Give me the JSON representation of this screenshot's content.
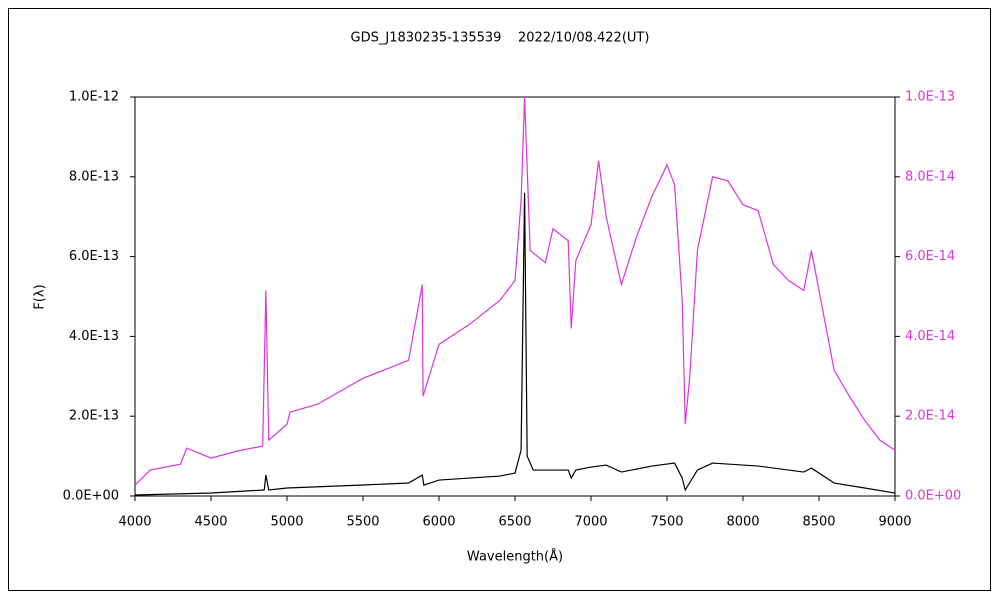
{
  "chart_data": {
    "type": "line",
    "title": "GDS_J1830235-135539    2022/10/08.422(UT)",
    "xlabel": "Wavelength(Å)",
    "ylabel": "F(λ)",
    "xlim": [
      4000,
      9000
    ],
    "xticks": [
      4000,
      4500,
      5000,
      5500,
      6000,
      6500,
      7000,
      7500,
      8000,
      8500,
      9000
    ],
    "ylim": [
      0,
      1e-12
    ],
    "yticks": [
      {
        "value": 0,
        "label": "0.0E+00"
      },
      {
        "value": 2e-13,
        "label": "2.0E-13"
      },
      {
        "value": 4e-13,
        "label": "4.0E-13"
      },
      {
        "value": 6e-13,
        "label": "6.0E-13"
      },
      {
        "value": 8e-13,
        "label": "8.0E-13"
      },
      {
        "value": 1e-12,
        "label": "1.0E-12"
      }
    ],
    "y2lim": [
      0,
      1e-13
    ],
    "y2ticks": [
      {
        "value": 0,
        "label": "0.0E+00"
      },
      {
        "value": 2e-14,
        "label": "2.0E-14"
      },
      {
        "value": 4e-14,
        "label": "4.0E-14"
      },
      {
        "value": 6e-14,
        "label": "6.0E-14"
      },
      {
        "value": 8e-14,
        "label": "8.0E-14"
      },
      {
        "value": 1e-13,
        "label": "1.0E-13"
      }
    ],
    "y2color": "#dd33dd",
    "series": [
      {
        "color": "#dd33dd",
        "axis": "y2",
        "x": [
          4000,
          4100,
          4300,
          4340,
          4500,
          4700,
          4840,
          4861,
          4880,
          5000,
          5020,
          5200,
          5500,
          5800,
          5890,
          5895,
          6000,
          6200,
          6400,
          6500,
          6540,
          6563,
          6600,
          6700,
          6750,
          6850,
          6870,
          6900,
          7000,
          7050,
          7100,
          7200,
          7300,
          7400,
          7500,
          7550,
          7600,
          7620,
          7650,
          7700,
          7800,
          7900,
          8000,
          8100,
          8200,
          8300,
          8400,
          8450,
          8500,
          8600,
          8700,
          8800,
          8900,
          9000
        ],
        "values": [
          2.7e-15,
          6.5e-15,
          8e-15,
          1.2e-14,
          9.5e-15,
          1.15e-14,
          1.25e-14,
          5.15e-14,
          1.4e-14,
          1.8e-14,
          2.1e-14,
          2.3e-14,
          2.95e-14,
          3.4e-14,
          5.3e-14,
          2.5e-14,
          3.8e-14,
          4.3e-14,
          4.9e-14,
          5.4e-14,
          7.4e-14,
          1e-13,
          6.15e-14,
          5.85e-14,
          6.7e-14,
          6.4e-14,
          4.2e-14,
          5.9e-14,
          6.8e-14,
          8.4e-14,
          7e-14,
          5.3e-14,
          6.5e-14,
          7.5e-14,
          8.3e-14,
          7.8e-14,
          4.9e-14,
          1.8e-14,
          3e-14,
          6.15e-14,
          8e-14,
          7.9e-14,
          7.3e-14,
          7.15e-14,
          5.8e-14,
          5.4e-14,
          5.15e-14,
          6.15e-14,
          5.15e-14,
          3.15e-14,
          2.5e-14,
          1.9e-14,
          1.4e-14,
          1.15e-14
        ]
      },
      {
        "color": "#000000",
        "x": [
          4000,
          4500,
          4850,
          4861,
          4880,
          5000,
          5500,
          5800,
          5890,
          5900,
          6000,
          6400,
          6500,
          6540,
          6563,
          6580,
          6620,
          6850,
          6870,
          6900,
          7000,
          7100,
          7200,
          7400,
          7550,
          7600,
          7620,
          7700,
          7800,
          8100,
          8400,
          8450,
          8600,
          8800,
          9000
        ],
        "values": [
          2.5e-15,
          7.5e-15,
          1.5e-14,
          5.25e-14,
          1.5e-14,
          2e-14,
          2.75e-14,
          3.25e-14,
          5.25e-14,
          2.75e-14,
          4e-14,
          5e-14,
          5.75e-14,
          1.15e-13,
          7.6e-13,
          1e-13,
          6.5e-14,
          6.5e-14,
          4.5e-14,
          6.5e-14,
          7.25e-14,
          7.75e-14,
          6e-14,
          7.5e-14,
          8.25e-14,
          4.5e-14,
          1.5e-14,
          6.5e-14,
          8.25e-14,
          7.5e-14,
          6e-14,
          7e-14,
          3.25e-14,
          2e-14,
          7.5e-15
        ]
      }
    ]
  }
}
